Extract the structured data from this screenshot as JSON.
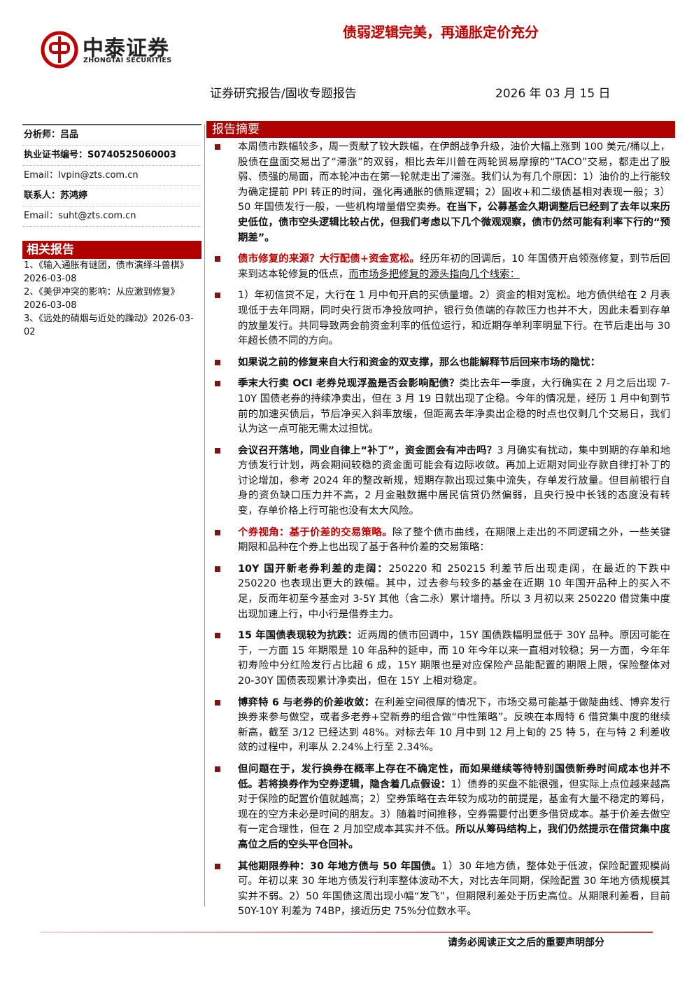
{
  "header": {
    "logo_cn": "中泰证券",
    "logo_en": "ZHONGTAI SECURITIES",
    "title": "债弱逻辑完美，再通胀定价充分",
    "report_type": "证券研究报告/固收专题报告",
    "date": "2026 年 03 月 15 日"
  },
  "sidebar": {
    "contacts": [
      {
        "label": "分析师：",
        "value": "吕品",
        "style": "bold"
      },
      {
        "label": "执业证书编号：",
        "value": "S0740525060003",
        "style": "bold"
      },
      {
        "label": "Email：",
        "value": "lvpin@zts.com.cn",
        "style": "normal"
      },
      {
        "label": "联系人：",
        "value": "苏鸿婷",
        "style": "bold"
      },
      {
        "label": "Email：",
        "value": "suht@zts.com.cn",
        "style": "normal"
      }
    ],
    "related_title": "相关报告",
    "related": [
      "1、《输入通胀有谜团，债市演绎斗兽棋》2026-03-08",
      "2、《美伊冲突的影响：从应激到修复》2026-03-08",
      "3、《远处的硝烟与近处的躁动》2026-03-02"
    ]
  },
  "summary": {
    "title": "报告摘要",
    "items": [
      {
        "runs": [
          {
            "text": "本周债市跌幅较多，周一贡献了较大跌幅，在伊朗战争升级，油价大幅上涨到 100 美元/桶以上，股债在盘面交易出了“滞涨”的双弱，相比去年川普在两轮贸易摩擦的“TACO”交易，都走出了股弱、债强的局面，而本轮冲击在第一轮就走出了滞涨。我们认为有几个原因：1）油价的上行能较为确定提前 PPI 转正的时间，强化再通胀的债熊逻辑；2）固收+和二级债基相对表现一般；3）50 年国债发行一般，一些机构增量借空卖券。",
            "style": "normal"
          },
          {
            "text": "在当下，公募基金久期调整后已经到了去年以来历史低位，债市空头逻辑比较占优，但我们考虑以下几个微观观察，债市仍然可能有利率下行的“预期差”。",
            "style": "bold"
          }
        ]
      },
      {
        "runs": [
          {
            "text": "债市修复的来源？大行配债+资金宽松。",
            "style": "red"
          },
          {
            "text": "经历年初的回调后，10 年国债开启领涨修复，到节后回来到达本轮修复的低点，",
            "style": "normal"
          },
          {
            "text": "而市场多把修复的源头指向几个线索：",
            "style": "underline"
          }
        ]
      },
      {
        "runs": [
          {
            "text": "1）年初信贷不足，大行在 1 月中旬开启的买债量增。2）资金的相对宽松。地方债供给在 2 月表现低于去年同期，同时央行货币净投放呵护，银行负债端的存款压力也并不大，因此未看到存单的放量发行。共同导致两会前资金利率的低位运行，和近期存单利率明显下行。在节后走出与 30 年超长债不同的方向。",
            "style": "normal"
          }
        ]
      },
      {
        "runs": [
          {
            "text": "如果说之前的修复来自大行和资金的双支撑，那么也能解释节后回来市场的隐忧：",
            "style": "bold"
          }
        ]
      },
      {
        "runs": [
          {
            "text": "季末大行卖 OCI 老券兑现浮盈是否会影响配债？",
            "style": "bold"
          },
          {
            "text": "类比去年一季度，大行确实在 2 月之后出现 7-10Y 国债老券的持续净卖出，但在 3 月 19 日就出现了企稳。今年的情况是，经历 1 月中旬到节前的加速买债后，节后净买入斜率放缓，但距离去年净卖出企稳的时点也仅剩几个交易日，我们认为这一点可能无需太过担忧。",
            "style": "normal"
          }
        ]
      },
      {
        "runs": [
          {
            "text": "会议召开落地，同业自律上“补丁”，资金面会有冲击吗？",
            "style": "bold"
          },
          {
            "text": "3 月确实有扰动，集中到期的存单和地方债发行计划，两会期间较稳的资金面可能会有边际收敛。再加上近期对同业存款自律打补丁的讨论增加，参考 2024 年的整改新规，短期存款出现过集中流失，存单发行放量。但目前银行自身的资负缺口压力并不高，2 月金融数据中居民信贷仍然偏弱，且央行投中长钱的态度没有转变，存单价格上行可能也没有太大风险。",
            "style": "normal"
          }
        ]
      },
      {
        "runs": [
          {
            "text": "个券视角：基于价差的交易策略。",
            "style": "red"
          },
          {
            "text": "除了整个债市曲线，在期限上走出的不同逻辑之外，一些关键期限和品种在个券上也出现了基于各种价差的交易策略：",
            "style": "normal"
          }
        ]
      },
      {
        "runs": [
          {
            "text": "10Y 国开新老券利差的走阔：",
            "style": "bold"
          },
          {
            "text": "250220 和 250215 利差节后出现走阔，在最近的下跌中 250220 也表现出更大的跌幅。其中，过去参与较多的基金在近期 10 年国开品种上的买入不足，反而年初至今基金对 3-5Y 其他（含二永）累计增持。所以 3 月初以来 250220 借贷集中度出现加速上行，中小行是借券主力。",
            "style": "normal"
          }
        ]
      },
      {
        "runs": [
          {
            "text": "15 年国债表现较为抗跌：",
            "style": "bold"
          },
          {
            "text": "近两周的债市回调中，15Y 国债跌幅明显低于 30Y 品种。原因可能在于，一方面 15 年期限是 10 年品种的延申，而 10 年今年以来一直相对较稳；另一方面，今年年初寿险中分红险发行占比超 6 成，15Y 期限也是对应保险产品能配置的期限上限，保险整体对 20-30Y 国债表现累计净卖出，但在 15Y 上相对稳定。",
            "style": "normal"
          }
        ]
      },
      {
        "runs": [
          {
            "text": "博弈特 6 与老券的价差收敛：",
            "style": "bold"
          },
          {
            "text": "在利差空间很厚的情况下，市场交易可能基于做陡曲线、博弈发行换券来参与做空，或者多老券+空新券的组合做“中性策略”。反映在本周特 6 借贷集中度的继续新高，截至 3/12 已经达到 48%。对标去年 10 月中到 12 月上旬的 25 特 5，在与特 2 利差收敛的过程中，利率从 2.24%上行至 2.34%。",
            "style": "normal"
          }
        ]
      },
      {
        "runs": [
          {
            "text": "但问题在于，发行换券在概率上存在不确定性，而如果继续等待特别国债新券时间成本也并不低。若将换券作为空券逻辑，隐含着几点假设：",
            "style": "bold"
          },
          {
            "text": "1）债券的买盘不能很强，但实际上点位越来越高对于保险的配置价值就越高；2）空券策略在去年较为成功的前提是，基金有大量不稳定的筹码，现在的空方未必是时间的朋友。3）随着时间推移，空券需要付出更多借贷成本。基于价差去做空有一定合理性，但在 2 月加空成本其实并不低。",
            "style": "normal"
          },
          {
            "text": "所以从筹码结构上，我们仍然提示在借贷集中度高位之后的空头平仓回补。",
            "style": "bold"
          }
        ]
      },
      {
        "runs": [
          {
            "text": "其他期限券种：30 年地方债与 50 年国债。",
            "style": "bold"
          },
          {
            "text": "1）30 年地方债，整体处于低波，保险配置规模尚可。年初以来 30 年地方债发行利率整体波动不大，对比去年同期，保险配置 30 年地方债规模其实并不弱。2）50 年国债这周出现小幅“发飞”，但期限利差处于历史高位。从期限利差看，目前 50Y-10Y 利差为 74BP，接近历史 75%分位数水平。",
            "style": "normal"
          }
        ]
      }
    ]
  },
  "footer": {
    "notice": "请务必阅读正文之后的重要声明部分"
  }
}
